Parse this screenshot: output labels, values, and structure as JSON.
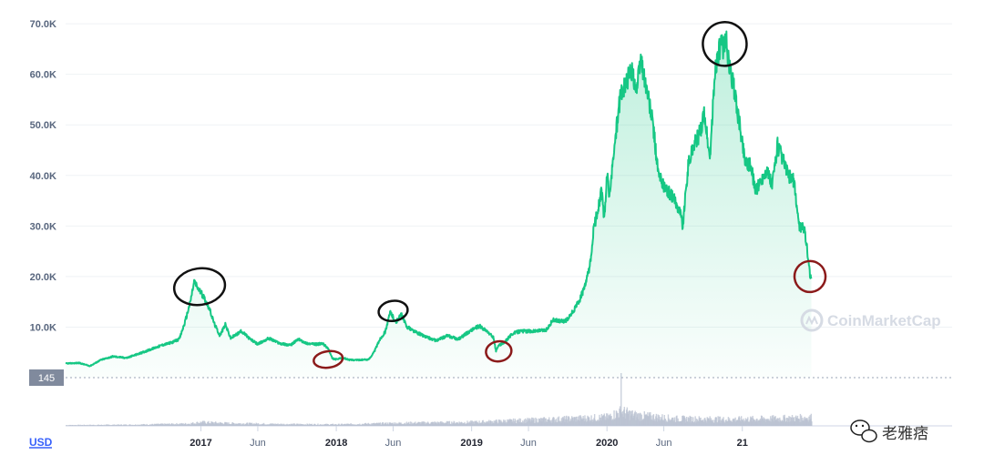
{
  "chart_data": {
    "type": "area",
    "currency_label": "USD",
    "baseline_label": "145",
    "y_ticks": [
      "70.0K",
      "60.0K",
      "50.0K",
      "40.0K",
      "30.0K",
      "20.0K",
      "10.0K"
    ],
    "ylim": [
      0,
      72000
    ],
    "xlim": [
      2016.0,
      2022.55
    ],
    "x_ticks": [
      {
        "label": "2017",
        "t": 2017.0,
        "year": true
      },
      {
        "label": "Jun",
        "t": 2017.42,
        "year": false
      },
      {
        "label": "2018",
        "t": 2018.0,
        "year": true
      },
      {
        "label": "Jun",
        "t": 2018.42,
        "year": false
      },
      {
        "label": "2019",
        "t": 2019.0,
        "year": true
      },
      {
        "label": "Jun",
        "t": 2019.42,
        "year": false
      },
      {
        "label": "2020",
        "t": 2020.0,
        "year": true
      },
      {
        "label": "Jun",
        "t": 2020.42,
        "year": false
      },
      {
        "label": "21",
        "t": 2021.0,
        "year": true
      }
    ],
    "series": [
      {
        "name": "Price (USD)",
        "color": "#16c784",
        "points": [
          [
            2016.0,
            2800
          ],
          [
            2016.1,
            2900
          ],
          [
            2016.18,
            2300
          ],
          [
            2016.26,
            3500
          ],
          [
            2016.35,
            4200
          ],
          [
            2016.45,
            3900
          ],
          [
            2016.55,
            4800
          ],
          [
            2016.65,
            5800
          ],
          [
            2016.72,
            6500
          ],
          [
            2016.78,
            6900
          ],
          [
            2016.84,
            7600
          ],
          [
            2016.88,
            10800
          ],
          [
            2016.92,
            14800
          ],
          [
            2016.95,
            19000
          ],
          [
            2016.98,
            17600
          ],
          [
            2017.02,
            16000
          ],
          [
            2017.06,
            13800
          ],
          [
            2017.1,
            10600
          ],
          [
            2017.14,
            8300
          ],
          [
            2017.18,
            10500
          ],
          [
            2017.22,
            7800
          ],
          [
            2017.3,
            9200
          ],
          [
            2017.36,
            7700
          ],
          [
            2017.42,
            6600
          ],
          [
            2017.5,
            7800
          ],
          [
            2017.58,
            6800
          ],
          [
            2017.66,
            6400
          ],
          [
            2017.72,
            7600
          ],
          [
            2017.78,
            6800
          ],
          [
            2017.84,
            6600
          ],
          [
            2017.9,
            6700
          ],
          [
            2017.94,
            5800
          ],
          [
            2017.97,
            3800
          ],
          [
            2018.0,
            3600
          ],
          [
            2018.05,
            3900
          ],
          [
            2018.1,
            3500
          ],
          [
            2018.18,
            3500
          ],
          [
            2018.24,
            3600
          ],
          [
            2018.28,
            5100
          ],
          [
            2018.32,
            7500
          ],
          [
            2018.36,
            9000
          ],
          [
            2018.4,
            13000
          ],
          [
            2018.44,
            10900
          ],
          [
            2018.48,
            12500
          ],
          [
            2018.52,
            10100
          ],
          [
            2018.58,
            9100
          ],
          [
            2018.66,
            8100
          ],
          [
            2018.74,
            7300
          ],
          [
            2018.82,
            8300
          ],
          [
            2018.9,
            7600
          ],
          [
            2018.96,
            8700
          ],
          [
            2019.02,
            9800
          ],
          [
            2019.06,
            10200
          ],
          [
            2019.12,
            9000
          ],
          [
            2019.16,
            8000
          ],
          [
            2019.18,
            5300
          ],
          [
            2019.2,
            6400
          ],
          [
            2019.24,
            6900
          ],
          [
            2019.3,
            8700
          ],
          [
            2019.36,
            9200
          ],
          [
            2019.45,
            9200
          ],
          [
            2019.55,
            9400
          ],
          [
            2019.6,
            11400
          ],
          [
            2019.66,
            11100
          ],
          [
            2019.7,
            11300
          ],
          [
            2019.76,
            13500
          ],
          [
            2019.8,
            15500
          ],
          [
            2019.84,
            18200
          ],
          [
            2019.88,
            23000
          ],
          [
            2019.9,
            29000
          ],
          [
            2019.93,
            33000
          ],
          [
            2019.96,
            37000
          ],
          [
            2019.98,
            31000
          ],
          [
            2020.0,
            40000
          ],
          [
            2020.02,
            36000
          ],
          [
            2020.06,
            47000
          ],
          [
            2020.1,
            56000
          ],
          [
            2020.14,
            58000
          ],
          [
            2020.18,
            61000
          ],
          [
            2020.22,
            57000
          ],
          [
            2020.25,
            63000
          ],
          [
            2020.3,
            56000
          ],
          [
            2020.34,
            50000
          ],
          [
            2020.38,
            40000
          ],
          [
            2020.44,
            37000
          ],
          [
            2020.48,
            36000
          ],
          [
            2020.54,
            33000
          ],
          [
            2020.56,
            30000
          ],
          [
            2020.6,
            42000
          ],
          [
            2020.64,
            46000
          ],
          [
            2020.68,
            48000
          ],
          [
            2020.72,
            52000
          ],
          [
            2020.76,
            43000
          ],
          [
            2020.8,
            61000
          ],
          [
            2020.84,
            66000
          ],
          [
            2020.86,
            65000
          ],
          [
            2020.88,
            67600
          ],
          [
            2020.9,
            62000
          ],
          [
            2020.94,
            57000
          ],
          [
            2020.98,
            50000
          ],
          [
            2021.02,
            43000
          ],
          [
            2021.06,
            42000
          ],
          [
            2021.1,
            37000
          ],
          [
            2021.14,
            39000
          ],
          [
            2021.18,
            41000
          ],
          [
            2021.22,
            38000
          ],
          [
            2021.26,
            46000
          ],
          [
            2021.3,
            43000
          ],
          [
            2021.34,
            40000
          ],
          [
            2021.38,
            39000
          ],
          [
            2021.42,
            30000
          ],
          [
            2021.46,
            29500
          ],
          [
            2021.48,
            25000
          ],
          [
            2021.5,
            20500
          ],
          [
            2021.51,
            19800
          ]
        ]
      }
    ],
    "volume": {
      "name": "Volume",
      "color": "#b8c0d0",
      "points": [
        [
          2016.0,
          0.05
        ],
        [
          2016.5,
          0.08
        ],
        [
          2016.9,
          0.15
        ],
        [
          2017.0,
          0.25
        ],
        [
          2017.2,
          0.18
        ],
        [
          2017.6,
          0.12
        ],
        [
          2018.0,
          0.1
        ],
        [
          2018.5,
          0.2
        ],
        [
          2019.0,
          0.25
        ],
        [
          2019.3,
          0.35
        ],
        [
          2019.6,
          0.45
        ],
        [
          2020.0,
          0.6
        ],
        [
          2020.1,
          1.0
        ],
        [
          2020.2,
          0.75
        ],
        [
          2020.5,
          0.5
        ],
        [
          2020.9,
          0.45
        ],
        [
          2021.2,
          0.5
        ],
        [
          2021.4,
          0.55
        ],
        [
          2021.51,
          0.6
        ]
      ]
    },
    "annotations": [
      {
        "type": "ellipse",
        "color": "#111111",
        "t": 2016.99,
        "v": 18000,
        "rx": 28,
        "ry": 20,
        "note": "peak"
      },
      {
        "type": "ellipse",
        "color": "#8b1a1a",
        "t": 2017.94,
        "v": 3600,
        "rx": 16,
        "ry": 9,
        "note": "trough"
      },
      {
        "type": "ellipse",
        "color": "#111111",
        "t": 2018.42,
        "v": 13200,
        "rx": 16,
        "ry": 11,
        "note": "peak"
      },
      {
        "type": "ellipse",
        "color": "#8b1a1a",
        "t": 2019.2,
        "v": 5200,
        "rx": 14,
        "ry": 11,
        "note": "trough"
      },
      {
        "type": "ellipse",
        "color": "#111111",
        "t": 2020.87,
        "v": 66000,
        "rx": 24,
        "ry": 24,
        "note": "peak"
      },
      {
        "type": "ellipse",
        "color": "#8b1a1a",
        "t": 2021.5,
        "v": 20000,
        "rx": 17,
        "ry": 17,
        "note": "trough"
      }
    ]
  },
  "watermark": {
    "brand": "CoinMarketCap"
  },
  "wechat_badge": {
    "text": "老雅痞"
  }
}
